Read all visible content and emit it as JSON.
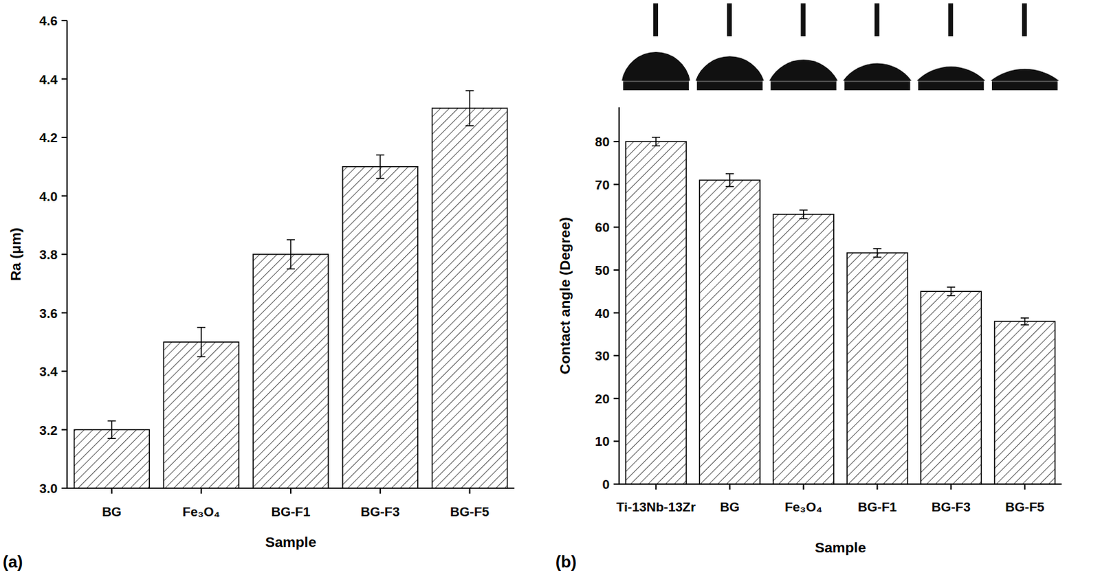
{
  "chart_data": [
    {
      "type": "bar",
      "panel_label": "(a)",
      "x_label": "Sample",
      "y_label": "Ra (μm)",
      "categories": [
        "BG",
        "Fe₃O₄",
        "BG-F1",
        "BG-F3",
        "BG-F5"
      ],
      "values": [
        3.2,
        3.5,
        3.8,
        4.1,
        4.3
      ],
      "errors": [
        0.03,
        0.05,
        0.05,
        0.04,
        0.06
      ],
      "color": "#000000",
      "ylim": [
        3.0,
        4.6
      ],
      "yticks": [
        {
          "value": 3.0,
          "label": "3.0"
        },
        3.2,
        3.4,
        3.6,
        3.8,
        {
          "value": 4.0,
          "label": "4.0"
        },
        4.2,
        4.4,
        4.6
      ],
      "grid": false
    },
    {
      "type": "bar",
      "panel_label": "(b)",
      "x_label": "Sample",
      "y_label": "Contact angle (Degree)",
      "categories": [
        "Ti-13Nb-13Zr",
        "BG",
        "Fe₃O₄",
        "BG-F1",
        "BG-F3",
        "BG-F5"
      ],
      "values": [
        80,
        71,
        63,
        54,
        45,
        38
      ],
      "errors": [
        1,
        1.5,
        1,
        1,
        1,
        0.8
      ],
      "color": "#000000",
      "ylim": [
        0,
        88
      ],
      "yticks": [
        0,
        10,
        20,
        30,
        40,
        50,
        60,
        70,
        80
      ],
      "grid": false
    }
  ]
}
